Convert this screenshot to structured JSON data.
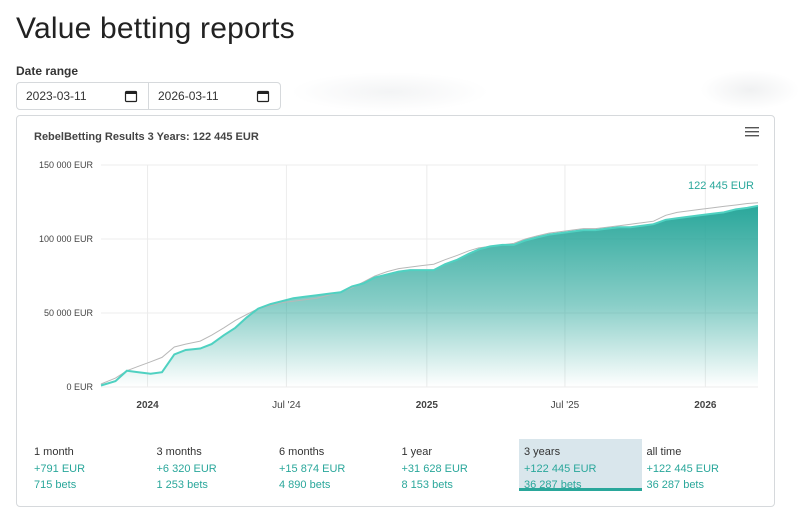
{
  "page_title": "Value betting reports",
  "date_range": {
    "label": "Date range",
    "start": "2023-03-11",
    "end": "2026-03-11"
  },
  "chart": {
    "title": "RebelBetting Results 3 Years: 122 445 EUR",
    "end_label": "122 445 EUR"
  },
  "colors": {
    "accent": "#2aa79b",
    "comparison_line": "#b8b8b8",
    "active_tab_bg": "#d9e6ec"
  },
  "icons": {
    "calendar": "calendar-icon",
    "menu": "hamburger-menu-icon"
  },
  "chart_data": {
    "type": "area",
    "title": "RebelBetting Results 3 Years: 122 445 EUR",
    "y_tick_labels": [
      "0 EUR",
      "50 000 EUR",
      "100 000 EUR",
      "150 000 EUR"
    ],
    "y_ticks": [
      0,
      50000,
      100000,
      150000
    ],
    "ylim": [
      0,
      150000
    ],
    "x_tick_labels": [
      "2024",
      "Jul '24",
      "2025",
      "Jul '25",
      "2026"
    ],
    "x_ticks": [
      "2024-01-01",
      "2024-07-01",
      "2025-01-01",
      "2025-07-01",
      "2026-01-01"
    ],
    "xlim": [
      "2023-11-01",
      "2026-03-11"
    ],
    "grid": true,
    "legend": "none",
    "end_value_label": "122 445 EUR",
    "series": [
      {
        "x": [
          "2023-11-01",
          "2023-11-20",
          "2023-12-05",
          "2023-12-20",
          "2024-01-05",
          "2024-01-20",
          "2024-02-05",
          "2024-02-20",
          "2024-03-10",
          "2024-03-25",
          "2024-04-10",
          "2024-04-25",
          "2024-05-10",
          "2024-05-25",
          "2024-06-10",
          "2024-06-25",
          "2024-07-10",
          "2024-07-25",
          "2024-08-10",
          "2024-08-25",
          "2024-09-10",
          "2024-09-25",
          "2024-10-10",
          "2024-10-25",
          "2024-11-10",
          "2024-11-25",
          "2024-12-10",
          "2024-12-25",
          "2025-01-10",
          "2025-01-25",
          "2025-02-10",
          "2025-02-25",
          "2025-03-10",
          "2025-03-25",
          "2025-04-10",
          "2025-04-25",
          "2025-05-10",
          "2025-05-25",
          "2025-06-10",
          "2025-06-25",
          "2025-07-10",
          "2025-07-25",
          "2025-08-10",
          "2025-08-25",
          "2025-09-10",
          "2025-09-25",
          "2025-10-10",
          "2025-10-25",
          "2025-11-10",
          "2025-11-25",
          "2025-12-10",
          "2025-12-25",
          "2026-01-10",
          "2026-01-25",
          "2026-02-10",
          "2026-02-25",
          "2026-03-11"
        ],
        "values": [
          1000,
          4000,
          11000,
          10000,
          9000,
          10000,
          22000,
          25000,
          26000,
          29000,
          35000,
          40000,
          47000,
          53000,
          56000,
          58000,
          60000,
          61000,
          62000,
          63000,
          64000,
          68000,
          70000,
          74000,
          76000,
          78000,
          79000,
          79000,
          79000,
          83000,
          86000,
          90000,
          93000,
          95000,
          96000,
          96000,
          99000,
          101000,
          103000,
          104000,
          105000,
          106000,
          106000,
          107000,
          108000,
          108000,
          109000,
          110000,
          113000,
          114000,
          115000,
          116000,
          117000,
          118000,
          120000,
          121000,
          122445
        ]
      },
      {
        "x": [
          "2023-11-01",
          "2023-11-20",
          "2023-12-05",
          "2023-12-20",
          "2024-01-05",
          "2024-01-20",
          "2024-02-05",
          "2024-02-20",
          "2024-03-10",
          "2024-03-25",
          "2024-04-10",
          "2024-04-25",
          "2024-05-10",
          "2024-05-25",
          "2024-06-10",
          "2024-06-25",
          "2024-07-10",
          "2024-07-25",
          "2024-08-10",
          "2024-08-25",
          "2024-09-10",
          "2024-09-25",
          "2024-10-10",
          "2024-10-25",
          "2024-11-10",
          "2024-11-25",
          "2024-12-10",
          "2024-12-25",
          "2025-01-10",
          "2025-01-25",
          "2025-02-10",
          "2025-02-25",
          "2025-03-10",
          "2025-03-25",
          "2025-04-10",
          "2025-04-25",
          "2025-05-10",
          "2025-05-25",
          "2025-06-10",
          "2025-06-25",
          "2025-07-10",
          "2025-07-25",
          "2025-08-10",
          "2025-08-25",
          "2025-09-10",
          "2025-09-25",
          "2025-10-10",
          "2025-10-25",
          "2025-11-10",
          "2025-11-25",
          "2025-12-10",
          "2025-12-25",
          "2026-01-10",
          "2026-01-25",
          "2026-02-10",
          "2026-02-25",
          "2026-03-11"
        ],
        "values": [
          2000,
          6000,
          11000,
          14000,
          17000,
          20000,
          27000,
          29000,
          31000,
          35000,
          40000,
          45000,
          49000,
          53000,
          55000,
          57000,
          58000,
          59000,
          60000,
          62000,
          64000,
          67000,
          71000,
          75000,
          78000,
          80000,
          81000,
          82000,
          83000,
          86000,
          89000,
          92000,
          94000,
          95000,
          96000,
          97000,
          100000,
          102000,
          104000,
          105000,
          106000,
          107000,
          107000,
          108000,
          109000,
          110000,
          111000,
          112000,
          116000,
          118000,
          119000,
          120000,
          121000,
          122000,
          123000,
          124000,
          124500
        ]
      }
    ]
  },
  "periods": [
    {
      "label": "1 month",
      "amount": "+791 EUR",
      "bets": "715 bets"
    },
    {
      "label": "3 months",
      "amount": "+6 320 EUR",
      "bets": "1 253 bets"
    },
    {
      "label": "6 months",
      "amount": "+15 874 EUR",
      "bets": "4 890 bets"
    },
    {
      "label": "1 year",
      "amount": "+31 628 EUR",
      "bets": "8 153 bets"
    },
    {
      "label": "3 years",
      "amount": "+122 445 EUR",
      "bets": "36 287 bets",
      "active": true
    },
    {
      "label": "all time",
      "amount": "+122 445 EUR",
      "bets": "36 287 bets"
    }
  ]
}
